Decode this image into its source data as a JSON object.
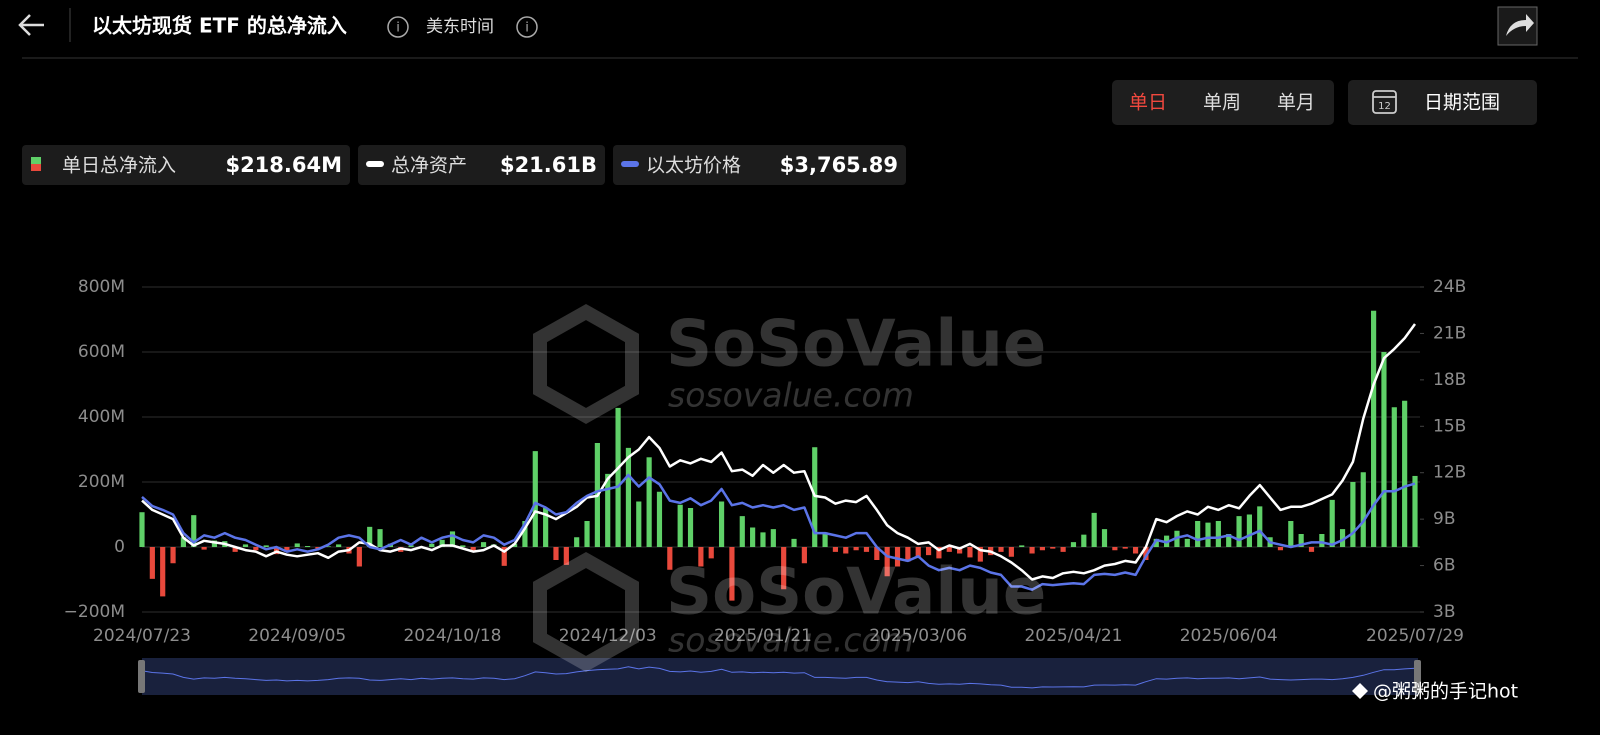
{
  "header": {
    "title": "以太坊现货 ETF 的总净流入",
    "timezone": "美东时间",
    "periods": [
      "单日",
      "单周",
      "单月"
    ],
    "date_range": "日期范围"
  },
  "watermark": {
    "brand": "SoSoValue",
    "url": "sosovalue.com"
  },
  "credit": "@粥粥的手记hot",
  "chart_data": {
    "type": "combo",
    "categories": [
      "2024/07/23",
      null,
      null,
      null,
      null,
      null,
      null,
      null,
      null,
      null,
      null,
      null,
      null,
      null,
      null,
      "2024/09/05",
      null,
      null,
      null,
      null,
      null,
      null,
      null,
      null,
      null,
      null,
      null,
      null,
      null,
      null,
      "2024/10/18",
      null,
      null,
      null,
      null,
      null,
      null,
      null,
      null,
      null,
      null,
      null,
      null,
      null,
      null,
      "2024/12/03",
      null,
      null,
      null,
      null,
      null,
      null,
      null,
      null,
      null,
      null,
      null,
      null,
      null,
      null,
      "2025/01/21",
      null,
      null,
      null,
      null,
      null,
      null,
      null,
      null,
      null,
      null,
      null,
      null,
      null,
      null,
      "2025/03/06",
      null,
      null,
      null,
      null,
      null,
      null,
      null,
      null,
      null,
      null,
      null,
      null,
      null,
      null,
      "2025/04/21",
      null,
      null,
      null,
      null,
      null,
      null,
      null,
      null,
      null,
      null,
      null,
      null,
      null,
      null,
      "2025/06/04",
      null,
      null,
      null,
      null,
      null,
      null,
      null,
      null,
      null,
      null,
      null,
      null,
      null,
      null,
      null,
      null,
      null,
      "2025/07/29"
    ],
    "series": [
      {
        "name": "单日总净流入",
        "type": "bar",
        "latest": "$218.64M",
        "color": "#5fd068",
        "negative_color": "#e8493c",
        "values": [
          107,
          -98,
          -152,
          -50,
          30,
          98,
          -8,
          20,
          18,
          -15,
          8,
          -10,
          5,
          -22,
          -15,
          11,
          3,
          -5,
          2,
          8,
          -20,
          -60,
          62,
          55,
          10,
          -15,
          5,
          0,
          10,
          22,
          48,
          5,
          -12,
          15,
          8,
          -58,
          10,
          80,
          295,
          120,
          -40,
          -55,
          30,
          80,
          320,
          225,
          428,
          305,
          140,
          276,
          170,
          -70,
          130,
          120,
          -60,
          -35,
          140,
          -165,
          95,
          60,
          45,
          55,
          -130,
          25,
          -50,
          307,
          45,
          -15,
          -20,
          -10,
          -15,
          -40,
          -90,
          -60,
          -45,
          -30,
          -25,
          -35,
          -15,
          -20,
          -32,
          -45,
          -25,
          -15,
          -30,
          5,
          -20,
          -10,
          -5,
          -15,
          15,
          38,
          105,
          55,
          -10,
          -5,
          -20,
          -40,
          25,
          35,
          50,
          25,
          80,
          75,
          80,
          40,
          95,
          100,
          125,
          30,
          -10,
          80,
          40,
          -15,
          40,
          145,
          55,
          200,
          230,
          727,
          600,
          430,
          450,
          218.64
        ]
      },
      {
        "name": "总净资产",
        "type": "line",
        "axis": "y2",
        "latest": "$21.61B",
        "color": "#ffffff",
        "values": [
          10.2,
          9.6,
          9.3,
          9.0,
          7.8,
          7.3,
          7.6,
          7.5,
          7.4,
          7.2,
          7.0,
          6.9,
          6.6,
          6.9,
          6.7,
          6.6,
          6.7,
          6.8,
          6.5,
          6.9,
          7.0,
          7.5,
          7.4,
          7.0,
          6.9,
          7.1,
          7.0,
          7.2,
          7.0,
          7.3,
          7.3,
          7.1,
          6.9,
          7.0,
          7.3,
          6.9,
          7.4,
          8.4,
          9.5,
          9.3,
          9.0,
          9.4,
          9.8,
          10.4,
          10.5,
          11.6,
          12.3,
          13.0,
          13.5,
          14.3,
          13.6,
          12.4,
          12.8,
          12.6,
          12.9,
          12.7,
          13.3,
          12.1,
          12.2,
          11.8,
          12.5,
          12.0,
          12.5,
          12.0,
          12.1,
          10.5,
          10.4,
          10.0,
          10.2,
          10.1,
          10.5,
          9.6,
          8.6,
          8.1,
          7.8,
          7.4,
          7.5,
          7.0,
          7.3,
          7.1,
          7.4,
          7.0,
          6.9,
          6.6,
          6.2,
          5.7,
          5.1,
          5.3,
          5.2,
          5.5,
          5.6,
          5.5,
          5.7,
          6.0,
          6.1,
          6.3,
          6.2,
          7.2,
          9.0,
          8.8,
          9.2,
          9.5,
          9.3,
          9.8,
          9.6,
          9.9,
          9.7,
          10.5,
          11.2,
          10.4,
          9.6,
          9.8,
          9.8,
          10.0,
          10.3,
          10.6,
          11.5,
          12.7,
          15.5,
          17.7,
          19.4,
          20.0,
          20.7,
          21.61
        ]
      },
      {
        "name": "以太坊价格",
        "type": "line",
        "axis": "y3",
        "latest": "$3,765.89",
        "color": "#5b74e8",
        "values": [
          3480,
          3280,
          3200,
          3100,
          2700,
          2500,
          2650,
          2600,
          2700,
          2600,
          2550,
          2450,
          2350,
          2400,
          2300,
          2350,
          2300,
          2350,
          2450,
          2600,
          2650,
          2600,
          2400,
          2350,
          2450,
          2550,
          2450,
          2600,
          2500,
          2600,
          2650,
          2550,
          2500,
          2650,
          2600,
          2450,
          2550,
          2900,
          3350,
          3250,
          3100,
          3150,
          3350,
          3500,
          3600,
          3650,
          3700,
          3950,
          3700,
          3900,
          3750,
          3400,
          3350,
          3450,
          3300,
          3400,
          3650,
          3300,
          3350,
          3250,
          3300,
          3250,
          3300,
          3200,
          3250,
          2700,
          2700,
          2650,
          2600,
          2700,
          2700,
          2400,
          2200,
          2150,
          2100,
          2200,
          2000,
          1900,
          1950,
          1900,
          2000,
          1950,
          1850,
          1800,
          1550,
          1550,
          1480,
          1600,
          1580,
          1600,
          1620,
          1600,
          1800,
          1820,
          1800,
          1850,
          1800,
          2200,
          2550,
          2500,
          2600,
          2650,
          2550,
          2600,
          2600,
          2650,
          2550,
          2650,
          2750,
          2500,
          2450,
          2400,
          2450,
          2500,
          2500,
          2450,
          2550,
          2700,
          2950,
          3300,
          3600,
          3600,
          3700,
          3765.89
        ]
      }
    ],
    "ylim": [
      -200,
      800
    ],
    "yticks": [
      {
        "value": -200,
        "label": "−200M"
      },
      0,
      {
        "value": 200,
        "label": "200M"
      },
      {
        "value": 400,
        "label": "400M"
      },
      {
        "value": 600,
        "label": "600M"
      },
      {
        "value": 800,
        "label": "800M"
      }
    ],
    "y2lim": [
      3,
      24
    ],
    "y2ticks": [
      {
        "value": 3,
        "label": "3B"
      },
      {
        "value": 6,
        "label": "6B"
      },
      {
        "value": 9,
        "label": "9B"
      },
      {
        "value": 12,
        "label": "12B"
      },
      {
        "value": 15,
        "label": "15B"
      },
      {
        "value": 18,
        "label": "18B"
      },
      {
        "value": 21,
        "label": "21B"
      },
      {
        "value": 24,
        "label": "24B"
      }
    ],
    "y3lim": [
      1000,
      8000
    ],
    "grid": true
  }
}
